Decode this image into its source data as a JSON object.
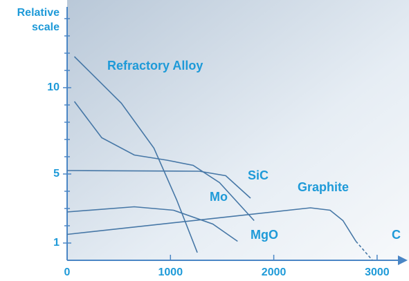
{
  "chart_data": {
    "type": "line",
    "y_label": "Relative scale",
    "xlim": [
      0,
      3200
    ],
    "xticks": [
      0,
      1000,
      2000,
      3000
    ],
    "ylim": [
      0,
      15
    ],
    "yticks": [
      1,
      5,
      10
    ],
    "yminorticks": [
      2,
      3,
      4,
      6,
      7,
      8,
      9,
      11,
      12,
      13,
      14
    ],
    "series": [
      {
        "name": "Refractory Alloy",
        "color": "#4677a6",
        "x": [
          70,
          525,
          840,
          1060,
          1260
        ],
        "values": [
          11.8,
          9.1,
          6.5,
          3.5,
          0.45
        ]
      },
      {
        "name": "Mo",
        "color": "#4677a6",
        "x": [
          70,
          335,
          650,
          965,
          1220,
          1475,
          1810
        ],
        "values": [
          9.2,
          7.1,
          6.1,
          5.8,
          5.5,
          4.5,
          2.3
        ]
      },
      {
        "name": "SiC",
        "color": "#4677a6",
        "x": [
          0,
          1280,
          1535,
          1775
        ],
        "values": [
          5.2,
          5.16,
          4.9,
          3.6
        ]
      },
      {
        "name": "MgO",
        "color": "#4677a6",
        "x": [
          0,
          650,
          1030,
          1410,
          1650
        ],
        "values": [
          2.8,
          3.1,
          2.9,
          2.1,
          1.1
        ]
      },
      {
        "name": "Graphite",
        "color": "#4677a6",
        "x": [
          0,
          2355,
          2545,
          2670,
          2795
        ],
        "values": [
          1.5,
          3.04,
          2.9,
          2.3,
          1.1
        ]
      },
      {
        "name": "C",
        "color": "#4677a6",
        "dashed": true,
        "x": [
          2795,
          2955
        ],
        "values": [
          1.1,
          0
        ]
      }
    ]
  }
}
